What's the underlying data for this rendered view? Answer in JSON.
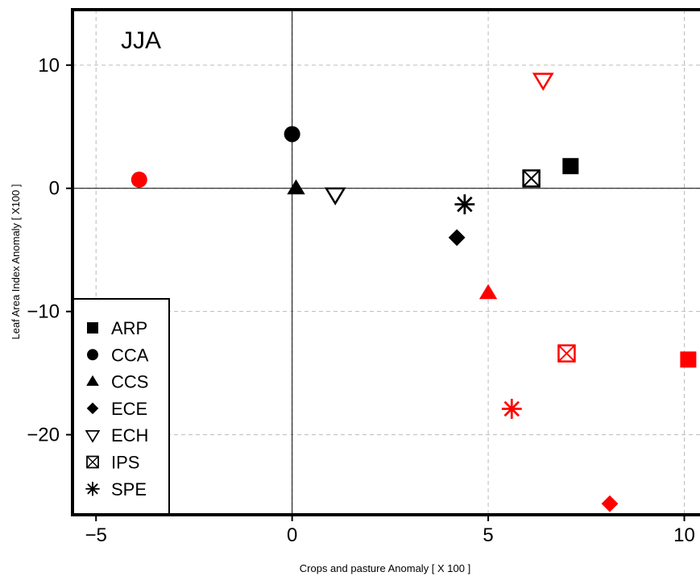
{
  "chart_data": {
    "type": "scatter",
    "title": "JJA",
    "xlabel": "Crops and pasture Anomaly [ X 100 ]",
    "ylabel": "Leaf Area Index  Anomaly [ X100 ]",
    "xlim": [
      -5.6,
      10.4
    ],
    "ylim": [
      -26.5,
      14.5
    ],
    "xticks": [
      -5,
      0,
      5,
      10
    ],
    "yticks": [
      -20,
      -10,
      0,
      10
    ],
    "xtick_labels": [
      "−5",
      "0",
      "5",
      "10"
    ],
    "ytick_labels": [
      "−20",
      "−10",
      "0",
      "10"
    ],
    "grid": true,
    "zero_lines": true,
    "legend_position": "bottom-left",
    "colors": {
      "black": "#000000",
      "red": "#ff0000",
      "grid": "#bbbbbb"
    },
    "series": [
      {
        "name": "ARP",
        "marker": "filled-square",
        "points": [
          {
            "x": 7.1,
            "y": 1.8,
            "color": "black"
          },
          {
            "x": 10.1,
            "y": -13.9,
            "color": "red"
          }
        ]
      },
      {
        "name": "CCA",
        "marker": "filled-circle",
        "points": [
          {
            "x": 0.0,
            "y": 4.4,
            "color": "black"
          },
          {
            "x": -3.9,
            "y": 0.7,
            "color": "red"
          }
        ]
      },
      {
        "name": "CCS",
        "marker": "filled-triangle",
        "points": [
          {
            "x": 0.1,
            "y": 0.0,
            "color": "black"
          },
          {
            "x": 5.0,
            "y": -8.5,
            "color": "red"
          }
        ]
      },
      {
        "name": "ECE",
        "marker": "filled-diamond",
        "points": [
          {
            "x": 4.2,
            "y": -4.0,
            "color": "black"
          },
          {
            "x": 8.1,
            "y": -25.6,
            "color": "red"
          }
        ]
      },
      {
        "name": "ECH",
        "marker": "open-down-triangle",
        "points": [
          {
            "x": 1.1,
            "y": -0.5,
            "color": "black"
          },
          {
            "x": 6.4,
            "y": 8.8,
            "color": "red"
          }
        ]
      },
      {
        "name": "IPS",
        "marker": "boxed-x",
        "points": [
          {
            "x": 6.1,
            "y": 0.8,
            "color": "black"
          },
          {
            "x": 7.0,
            "y": -13.4,
            "color": "red"
          }
        ]
      },
      {
        "name": "SPE",
        "marker": "asterisk",
        "points": [
          {
            "x": 4.4,
            "y": -1.3,
            "color": "black"
          },
          {
            "x": 5.6,
            "y": -17.9,
            "color": "red"
          }
        ]
      }
    ]
  }
}
